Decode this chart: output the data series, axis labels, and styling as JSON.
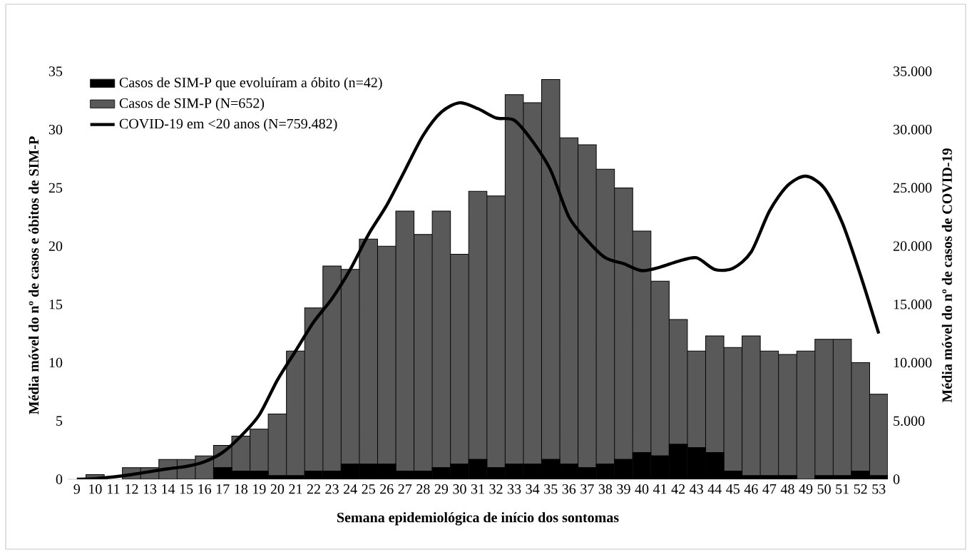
{
  "chart_data": {
    "type": "bar",
    "stacked": true,
    "xlabel": "Semana epidemiológica de início dos sontomas",
    "ylabel": "Média móvel do nº de casos e óbitos de SIM-P",
    "y2label": "Média móvel do nº de casos de COVID-19",
    "categories": [
      "9",
      "10",
      "11",
      "12",
      "13",
      "14",
      "15",
      "16",
      "17",
      "18",
      "19",
      "20",
      "21",
      "22",
      "23",
      "24",
      "25",
      "26",
      "27",
      "28",
      "29",
      "30",
      "31",
      "32",
      "33",
      "34",
      "35",
      "36",
      "37",
      "38",
      "39",
      "40",
      "41",
      "42",
      "43",
      "44",
      "45",
      "46",
      "47",
      "48",
      "49",
      "50",
      "51",
      "52",
      "53"
    ],
    "series": [
      {
        "name": "Casos de SIM-P que evoluíram a óbito (n=42)",
        "color": "#000000",
        "values": [
          0,
          0,
          0,
          0,
          0,
          0,
          0,
          0,
          1.0,
          0.7,
          0.7,
          0.3,
          0.3,
          0.7,
          0.7,
          1.3,
          1.3,
          1.3,
          0.7,
          0.7,
          1.0,
          1.3,
          1.7,
          1.0,
          1.3,
          1.3,
          1.7,
          1.3,
          1.0,
          1.3,
          1.7,
          2.3,
          2.0,
          3.0,
          2.7,
          2.3,
          0.7,
          0.3,
          0.3,
          0.3,
          0,
          0.3,
          0.3,
          0.7,
          0.3
        ]
      },
      {
        "name": "Casos de SIM-P (N=652)",
        "color": "#595959",
        "values": [
          0,
          0.4,
          0,
          1.0,
          1.0,
          1.7,
          1.7,
          2.0,
          1.9,
          3.0,
          3.6,
          5.3,
          10.7,
          14.0,
          17.6,
          16.7,
          19.3,
          18.7,
          22.3,
          20.3,
          22.0,
          18.0,
          23.0,
          23.3,
          31.7,
          31.0,
          32.6,
          28.0,
          27.7,
          25.3,
          23.3,
          19.0,
          15.0,
          10.7,
          8.3,
          10.0,
          10.6,
          12.0,
          10.7,
          10.4,
          11.0,
          11.7,
          11.7,
          9.3,
          7.0
        ]
      },
      {
        "name": "COVID-19 em <20 anos (N=759.482)",
        "type": "line",
        "axis": "y2",
        "color": "#000000",
        "line_style": "solid",
        "values": [
          0,
          50,
          200,
          400,
          650,
          900,
          1100,
          1500,
          2300,
          3700,
          5500,
          8500,
          11000,
          13500,
          15500,
          18000,
          21000,
          23500,
          26500,
          29500,
          31500,
          32300,
          31800,
          31000,
          30800,
          29000,
          26500,
          22500,
          20500,
          19000,
          18500,
          17900,
          18200,
          18700,
          19000,
          18000,
          18100,
          19500,
          23000,
          25200,
          26000,
          25000,
          22000,
          17500,
          12500
        ]
      }
    ],
    "ylim": [
      0,
      35
    ],
    "yticks": [
      0,
      5,
      10,
      15,
      20,
      25,
      30,
      35
    ],
    "y2lim": [
      0,
      35000
    ],
    "y2ticks": [
      {
        "value": 0,
        "label": "0"
      },
      {
        "value": 5000,
        "label": "5.000"
      },
      {
        "value": 10000,
        "label": "10.000"
      },
      {
        "value": 15000,
        "label": "15.000"
      },
      {
        "value": 20000,
        "label": "20.000"
      },
      {
        "value": 25000,
        "label": "25.000"
      },
      {
        "value": 30000,
        "label": "30.000"
      },
      {
        "value": 35000,
        "label": "35.000"
      }
    ],
    "grid": false,
    "legend": "top left",
    "marker": "none"
  }
}
